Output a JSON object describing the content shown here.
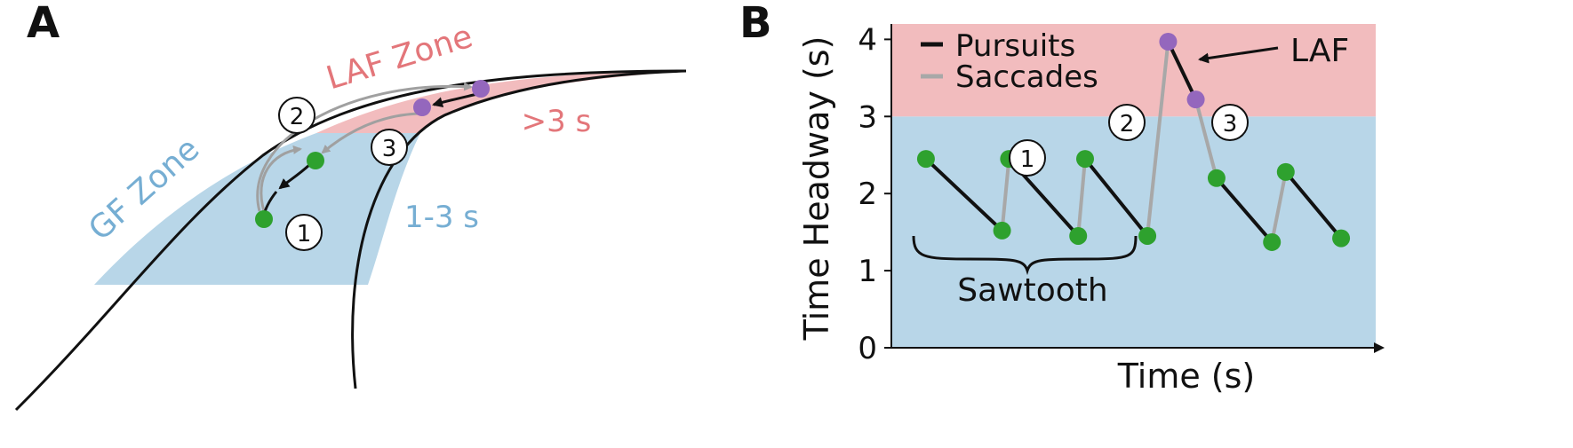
{
  "panel_a": {
    "label": "A",
    "laf_zone_label": "LAF Zone",
    "gf_zone_label": "GF Zone",
    "over3_label": ">3 s",
    "range_label": "1-3 s",
    "markers": [
      "1",
      "2",
      "3"
    ]
  },
  "panel_b": {
    "label": "B",
    "legend": {
      "pursuits": "Pursuits",
      "saccades": "Saccades"
    },
    "annotation_laf": "LAF",
    "brace_label": "Sawtooth",
    "markers": [
      "1",
      "2",
      "3"
    ]
  },
  "colors": {
    "laf_zone": "#f2bcbe",
    "gf_zone": "#b8d6e8",
    "laf_text": "#e3767a",
    "gf_text": "#76aed3",
    "pursuit": "#111111",
    "saccade": "#a8a8a8",
    "green_point": "#2ea12e",
    "purple_point": "#9467bd"
  },
  "chart_data": {
    "type": "line",
    "xlabel": "Time (s)",
    "ylabel": "Time Headway (s)",
    "ylim": [
      0,
      4.2
    ],
    "yticks": [
      "0",
      "1",
      "2",
      "3",
      "4"
    ],
    "zones": [
      {
        "name": "GF",
        "from": 0,
        "to": 3
      },
      {
        "name": "LAF",
        "from": 3,
        "to": 4.2
      }
    ],
    "points": [
      {
        "t": 0.5,
        "y": 2.45,
        "kind": "green"
      },
      {
        "t": 1.6,
        "y": 1.52,
        "kind": "green"
      },
      {
        "t": 1.7,
        "y": 2.45,
        "kind": "green"
      },
      {
        "t": 2.7,
        "y": 1.45,
        "kind": "green"
      },
      {
        "t": 2.8,
        "y": 2.45,
        "kind": "green"
      },
      {
        "t": 3.7,
        "y": 1.45,
        "kind": "green"
      },
      {
        "t": 4.0,
        "y": 3.97,
        "kind": "purple"
      },
      {
        "t": 4.4,
        "y": 3.22,
        "kind": "purple"
      },
      {
        "t": 4.7,
        "y": 2.2,
        "kind": "green"
      },
      {
        "t": 5.5,
        "y": 1.37,
        "kind": "green"
      },
      {
        "t": 5.7,
        "y": 2.28,
        "kind": "green"
      },
      {
        "t": 6.5,
        "y": 1.42,
        "kind": "green"
      }
    ],
    "segments": [
      {
        "from": 0,
        "to": 1,
        "type": "pursuit"
      },
      {
        "from": 1,
        "to": 2,
        "type": "saccade"
      },
      {
        "from": 2,
        "to": 3,
        "type": "pursuit"
      },
      {
        "from": 3,
        "to": 4,
        "type": "saccade"
      },
      {
        "from": 4,
        "to": 5,
        "type": "pursuit"
      },
      {
        "from": 5,
        "to": 6,
        "type": "saccade"
      },
      {
        "from": 6,
        "to": 7,
        "type": "pursuit"
      },
      {
        "from": 7,
        "to": 8,
        "type": "saccade"
      },
      {
        "from": 8,
        "to": 9,
        "type": "pursuit"
      },
      {
        "from": 9,
        "to": 10,
        "type": "saccade"
      },
      {
        "from": 10,
        "to": 11,
        "type": "pursuit"
      }
    ]
  }
}
